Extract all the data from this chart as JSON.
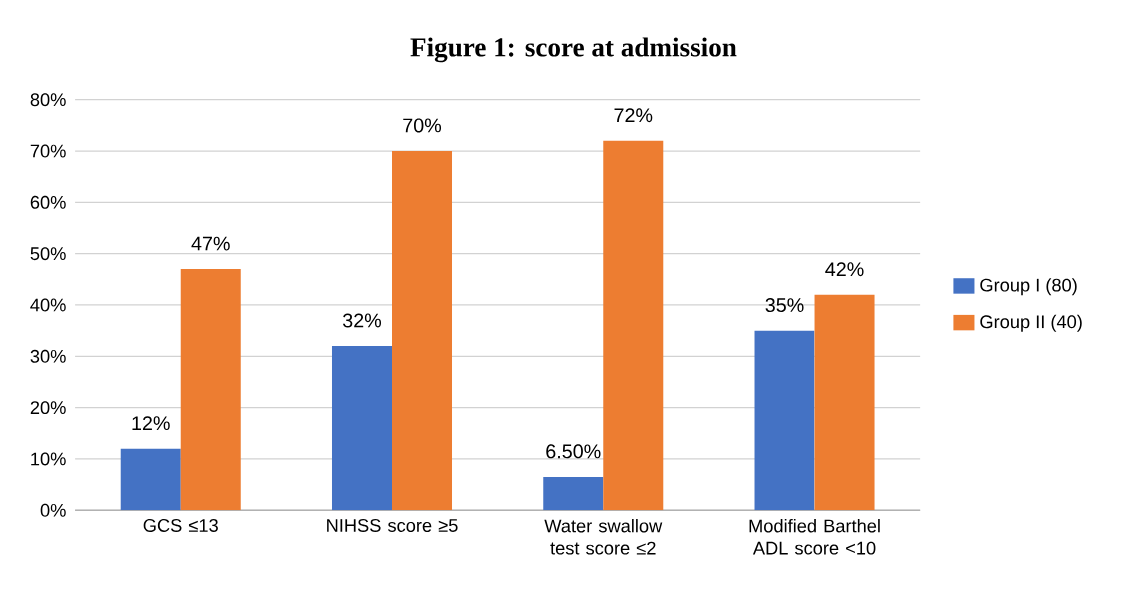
{
  "chart_data": {
    "type": "bar",
    "title": "Figure 1: score at admission",
    "categories": [
      "GCS ≤13",
      "NIHSS score ≥5",
      "Water swallow test score ≤2",
      "Modified Barthel ADL score <10"
    ],
    "series": [
      {
        "name": "Group I (80)",
        "color": "#4472c4",
        "values": [
          12,
          32,
          6.5,
          35
        ],
        "value_labels": [
          "12%",
          "32%",
          "6.50%",
          "35%"
        ]
      },
      {
        "name": "Group II (40)",
        "color": "#ed7d31",
        "values": [
          47,
          70,
          72,
          42
        ],
        "value_labels": [
          "47%",
          "70%",
          "72%",
          "42%"
        ]
      }
    ],
    "ylim": [
      0,
      80
    ],
    "yticks": [
      {
        "value": 0,
        "label": "0%"
      },
      {
        "value": 10,
        "label": "10%"
      },
      {
        "value": 20,
        "label": "20%"
      },
      {
        "value": 30,
        "label": "30%"
      },
      {
        "value": 40,
        "label": "40%"
      },
      {
        "value": 50,
        "label": "50%"
      },
      {
        "value": 60,
        "label": "60%"
      },
      {
        "value": 70,
        "label": "70%"
      },
      {
        "value": 80,
        "label": "80%"
      }
    ],
    "grid": "y",
    "legend": "right"
  }
}
